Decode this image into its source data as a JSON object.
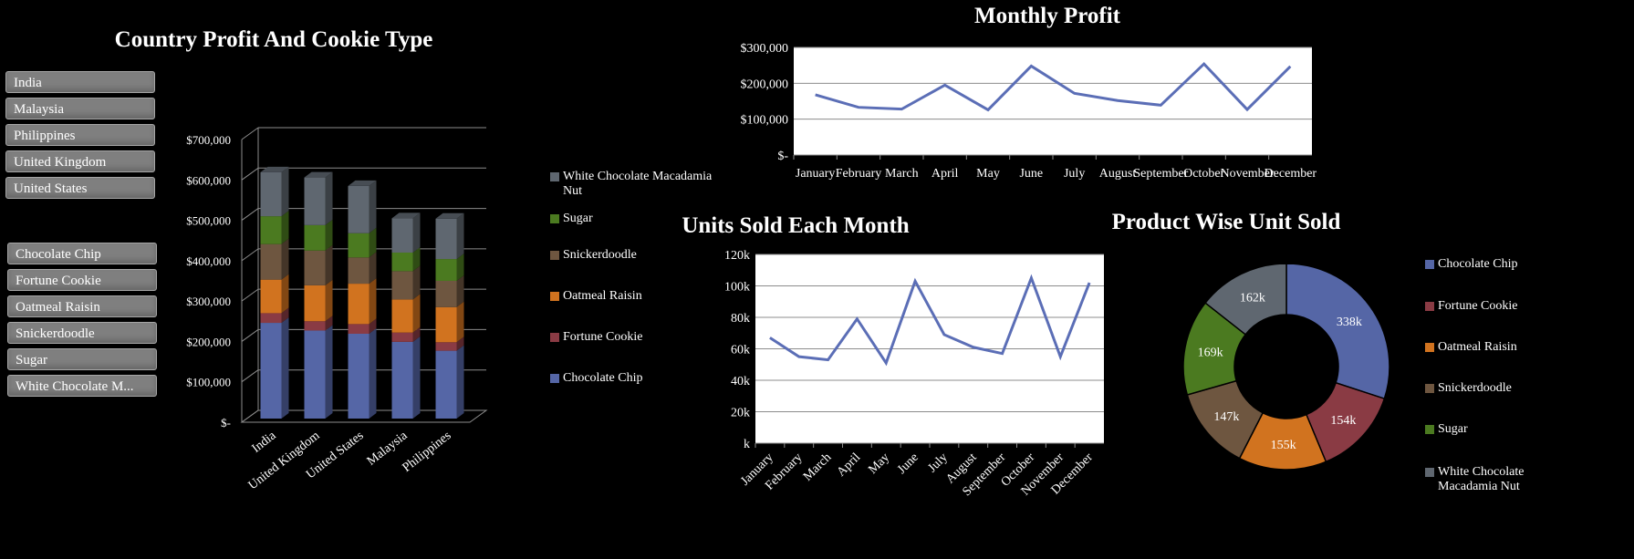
{
  "slicers": {
    "country": [
      "India",
      "Malaysia",
      "Philippines",
      "United Kingdom",
      "United States"
    ],
    "product": [
      "Chocolate Chip",
      "Fortune Cookie",
      "Oatmeal Raisin",
      "Snickerdoodle",
      "Sugar",
      "White Chocolate M..."
    ]
  },
  "colors": {
    "Chocolate Chip": "#5566a6",
    "Fortune Cookie": "#8a3b44",
    "Oatmeal Raisin": "#d1731f",
    "Snickerdoodle": "#6e5640",
    "Sugar": "#4b7a20",
    "White Chocolate Macadamia Nut": "#5f6770"
  },
  "chart_data": [
    {
      "id": "country-profit",
      "type": "bar",
      "stacked": true,
      "three_d": true,
      "title": "Country Profit And Cookie Type",
      "categories": [
        "India",
        "United Kingdom",
        "United States",
        "Malaysia",
        "Philippines"
      ],
      "series": [
        {
          "name": "Chocolate Chip",
          "values": [
            237000,
            218000,
            210000,
            190000,
            168000
          ]
        },
        {
          "name": "Fortune Cookie",
          "values": [
            24000,
            23000,
            24000,
            23000,
            21000
          ]
        },
        {
          "name": "Oatmeal Raisin",
          "values": [
            83000,
            89000,
            100000,
            82000,
            87000
          ]
        },
        {
          "name": "Snickerdoodle",
          "values": [
            88000,
            86000,
            65000,
            70000,
            65000
          ]
        },
        {
          "name": "Sugar",
          "values": [
            69000,
            63000,
            60000,
            46000,
            54000
          ]
        },
        {
          "name": "White Chocolate Macadamia Nut",
          "values": [
            109000,
            118000,
            117000,
            85000,
            100000
          ]
        }
      ],
      "yticks": [
        "$-",
        "$100,000",
        "$200,000",
        "$300,000",
        "$400,000",
        "$500,000",
        "$600,000",
        "$700,000"
      ],
      "ylim": [
        0,
        700000
      ],
      "legend_position": "right",
      "legend_order": [
        "White Chocolate Macadamia Nut",
        "Sugar",
        "Snickerdoodle",
        "Oatmeal Raisin",
        "Fortune Cookie",
        "Chocolate Chip"
      ]
    },
    {
      "id": "monthly-profit",
      "type": "line",
      "title": "Monthly Profit",
      "categories": [
        "January",
        "February",
        "March",
        "April",
        "May",
        "June",
        "July",
        "August",
        "September",
        "October",
        "November",
        "December"
      ],
      "values": [
        168000,
        133000,
        128000,
        195000,
        126000,
        248000,
        172000,
        152000,
        139000,
        254000,
        127000,
        247000
      ],
      "yticks": [
        "$-",
        "$100,000",
        "$200,000",
        "$300,000"
      ],
      "ylim": [
        0,
        300000
      ],
      "grid": true
    },
    {
      "id": "units-sold",
      "type": "line",
      "title": "Units Sold Each Month",
      "categories": [
        "January",
        "February",
        "March",
        "April",
        "May",
        "June",
        "July",
        "August",
        "September",
        "October",
        "November",
        "December"
      ],
      "values": [
        67000,
        55000,
        53000,
        79000,
        51000,
        103000,
        69000,
        61000,
        57000,
        105000,
        55000,
        102000
      ],
      "yticks": [
        "k",
        "20k",
        "40k",
        "60k",
        "80k",
        "100k",
        "120k"
      ],
      "ylim": [
        0,
        120000
      ],
      "grid": true
    },
    {
      "id": "product-units",
      "type": "pie",
      "donut": true,
      "title": "Product Wise Unit Sold",
      "labels": [
        "Chocolate Chip",
        "Fortune Cookie",
        "Oatmeal Raisin",
        "Snickerdoodle",
        "Sugar",
        "White Chocolate Macadamia Nut"
      ],
      "values": [
        338,
        154,
        155,
        147,
        169,
        162
      ],
      "data_labels": [
        "338k",
        "154k",
        "155k",
        "147k",
        "169k",
        "162k"
      ],
      "legend_position": "right"
    }
  ]
}
